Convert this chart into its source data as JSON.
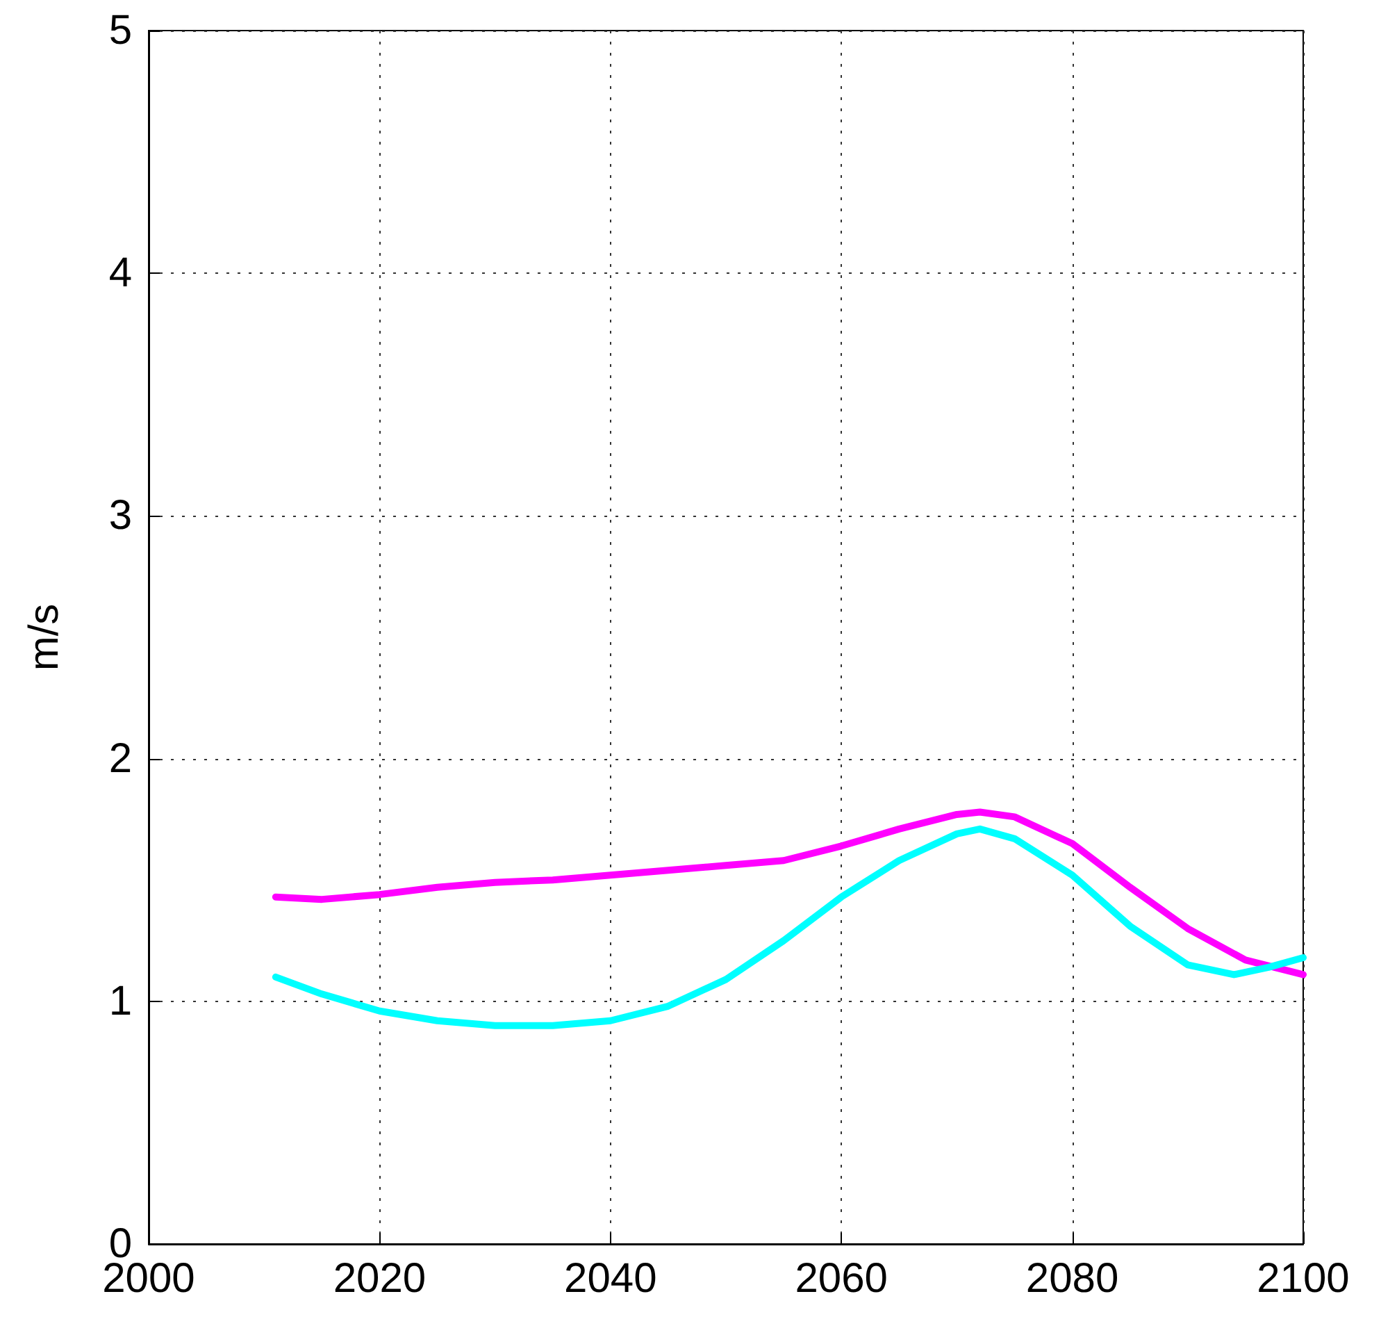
{
  "chart_data": {
    "type": "line",
    "ylabel": "m/s",
    "xlim": [
      2000,
      2100
    ],
    "xticks": [
      2000,
      2020,
      2040,
      2060,
      2080,
      2100
    ],
    "ylim": [
      0,
      5
    ],
    "yticks": [
      0,
      1,
      2,
      3,
      4,
      5
    ],
    "grid": true,
    "line_style": "solid",
    "marker": "none",
    "series": [
      {
        "color": "#ff00ff",
        "x": [
          2011,
          2015,
          2020,
          2025,
          2030,
          2035,
          2040,
          2045,
          2050,
          2055,
          2060,
          2065,
          2070,
          2072,
          2075,
          2080,
          2085,
          2090,
          2095,
          2100
        ],
        "values": [
          1.43,
          1.42,
          1.44,
          1.47,
          1.49,
          1.5,
          1.52,
          1.54,
          1.56,
          1.58,
          1.64,
          1.71,
          1.77,
          1.78,
          1.76,
          1.65,
          1.47,
          1.3,
          1.17,
          1.11
        ]
      },
      {
        "color": "#00ffff",
        "x": [
          2011,
          2015,
          2020,
          2025,
          2030,
          2035,
          2040,
          2045,
          2050,
          2055,
          2060,
          2065,
          2070,
          2072,
          2075,
          2080,
          2085,
          2090,
          2094,
          2097,
          2100
        ],
        "values": [
          1.1,
          1.03,
          0.96,
          0.92,
          0.9,
          0.9,
          0.92,
          0.98,
          1.09,
          1.25,
          1.43,
          1.58,
          1.69,
          1.71,
          1.67,
          1.52,
          1.31,
          1.15,
          1.11,
          1.14,
          1.18
        ]
      }
    ]
  }
}
